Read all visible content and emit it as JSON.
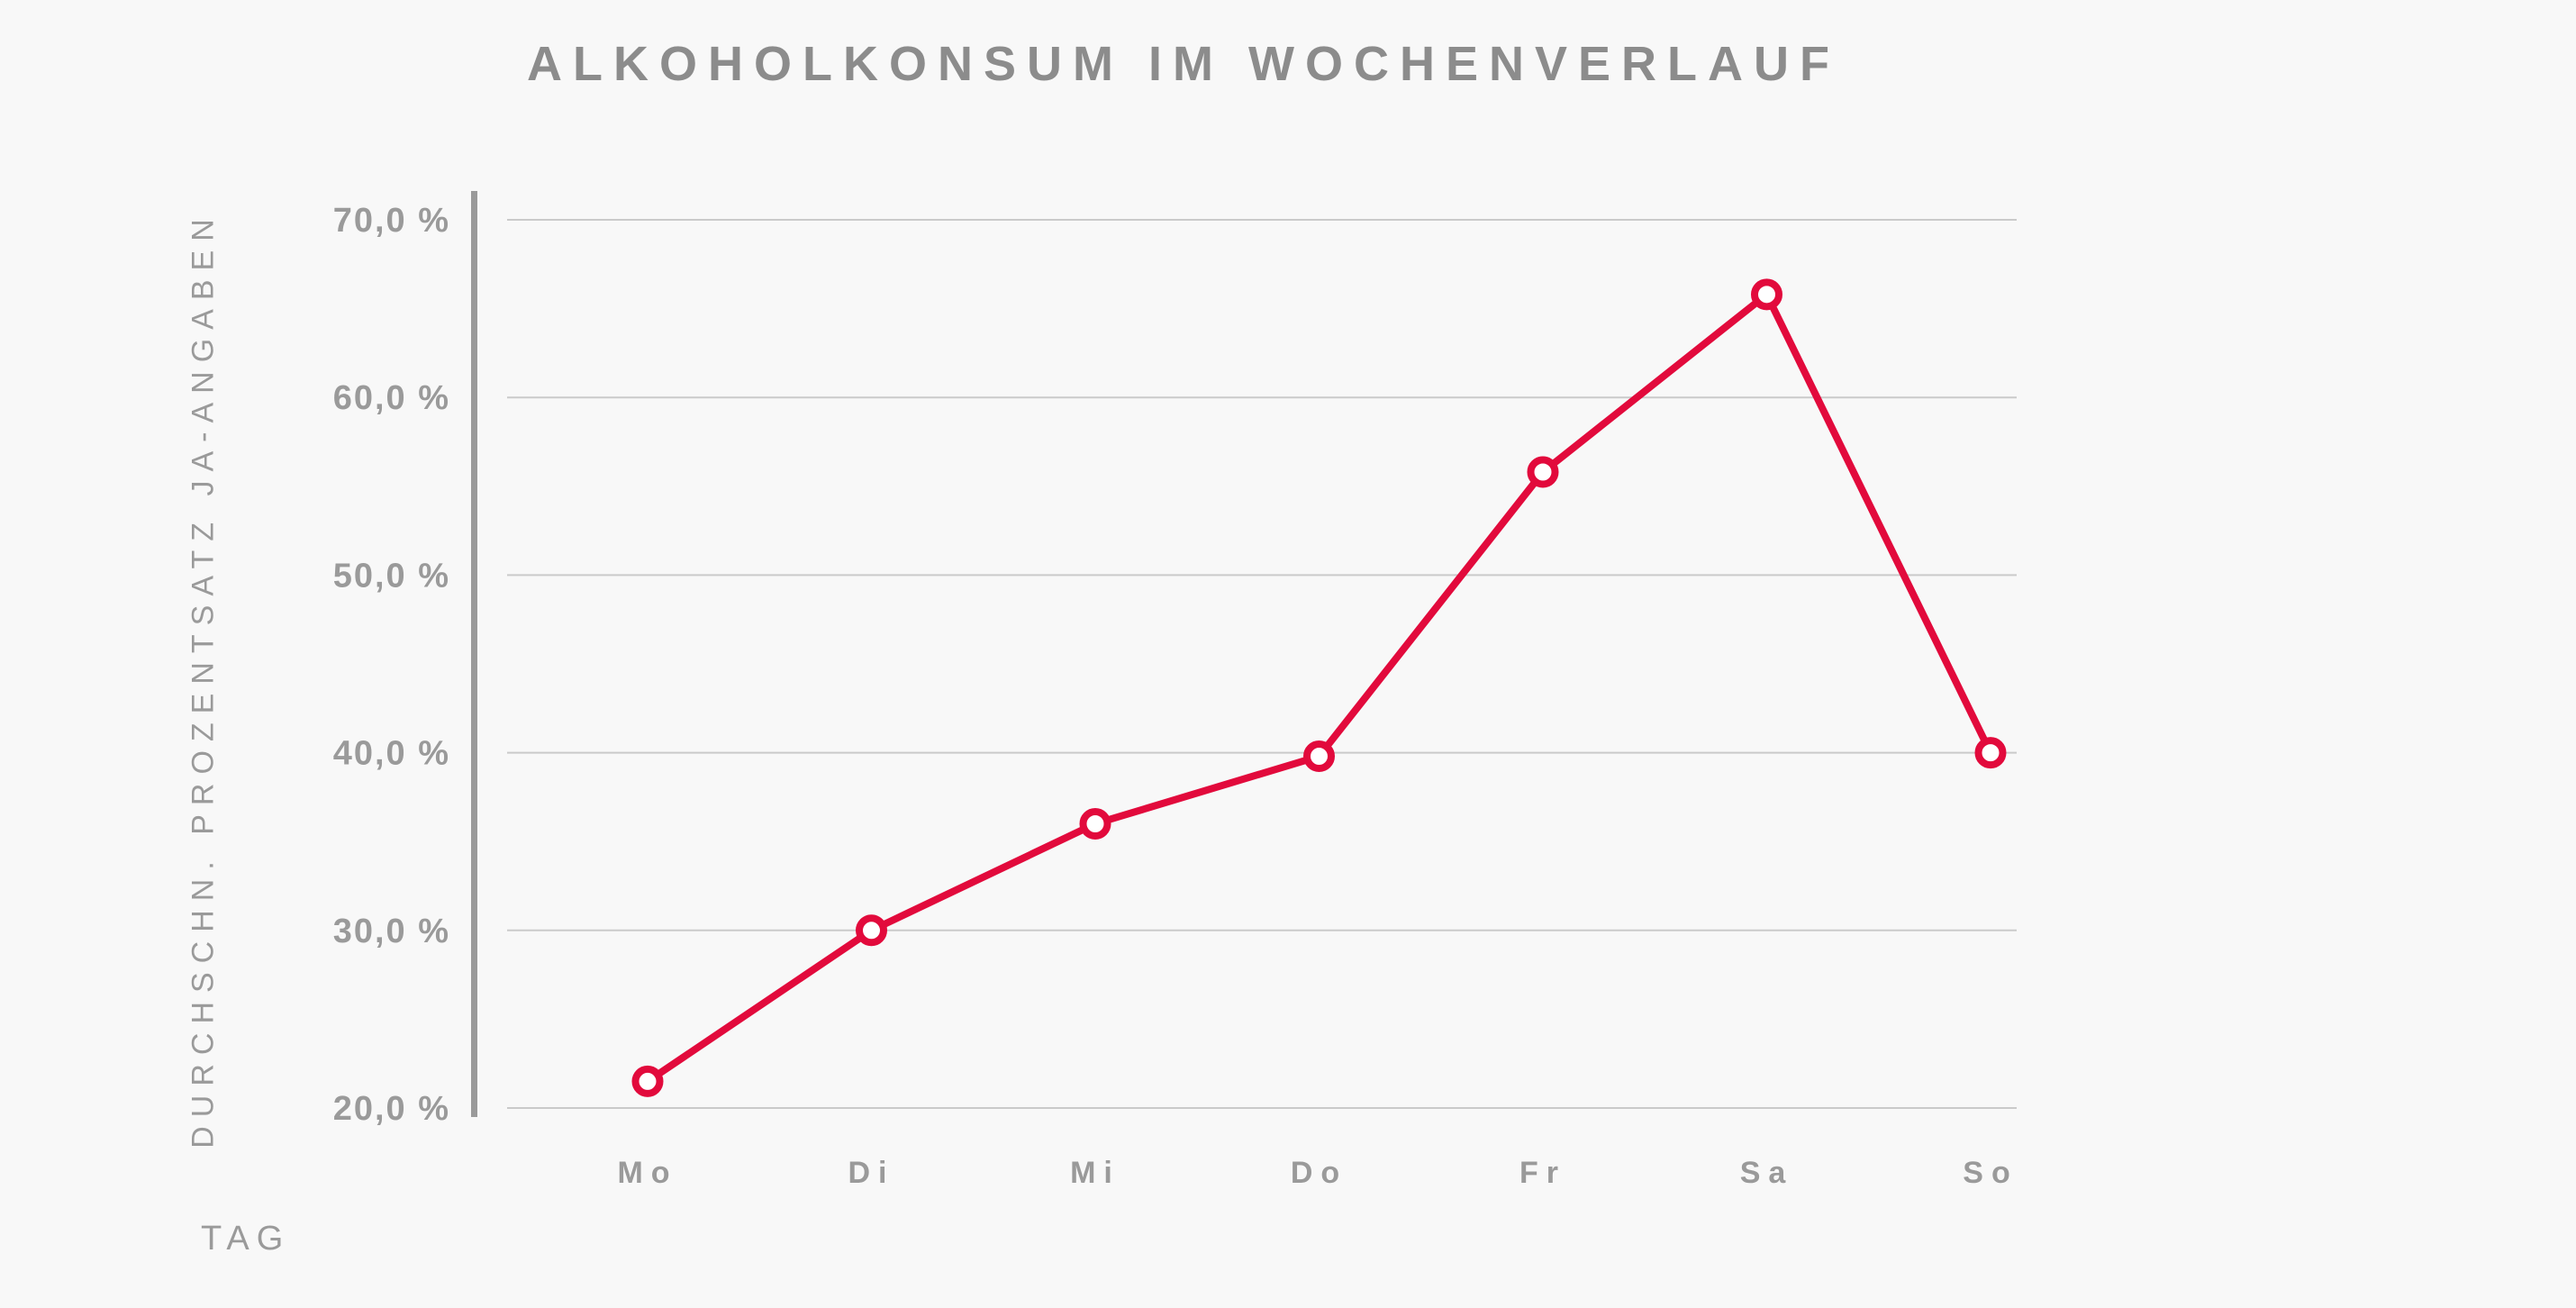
{
  "title": "ALKOHOLKONSUM IM WOCHENVERLAUF",
  "colors": {
    "accent_red": "#e20a3c",
    "marker_fill": "#ffffff",
    "grid_gray": "#cacaca",
    "axis_gray": "#9a9a9a",
    "text_gray": "#9a9a9a",
    "title_gray": "#8c8c8c",
    "background": "#f8f8f8"
  },
  "chart_data": {
    "type": "line",
    "title": "ALKOHOLKONSUM IM WOCHENVERLAUF",
    "xlabel": "TAG",
    "ylabel": "DURCHSCHN. PROZENTSATZ JA-ANGABEN",
    "categories": [
      "Mo",
      "Di",
      "Mi",
      "Do",
      "Fr",
      "Sa",
      "So"
    ],
    "values": [
      21.5,
      30.0,
      36.0,
      39.8,
      55.8,
      65.8,
      40.0
    ],
    "ylim": [
      20,
      70
    ],
    "ytick_step": 10,
    "ytick_labels_top_to_bottom": [
      "70,0 %",
      "60,0 %",
      "50,0 %",
      "40,0 %",
      "30,0 %",
      "20,0 %"
    ],
    "grid": true,
    "legend": "none",
    "marker": "open-circle"
  }
}
